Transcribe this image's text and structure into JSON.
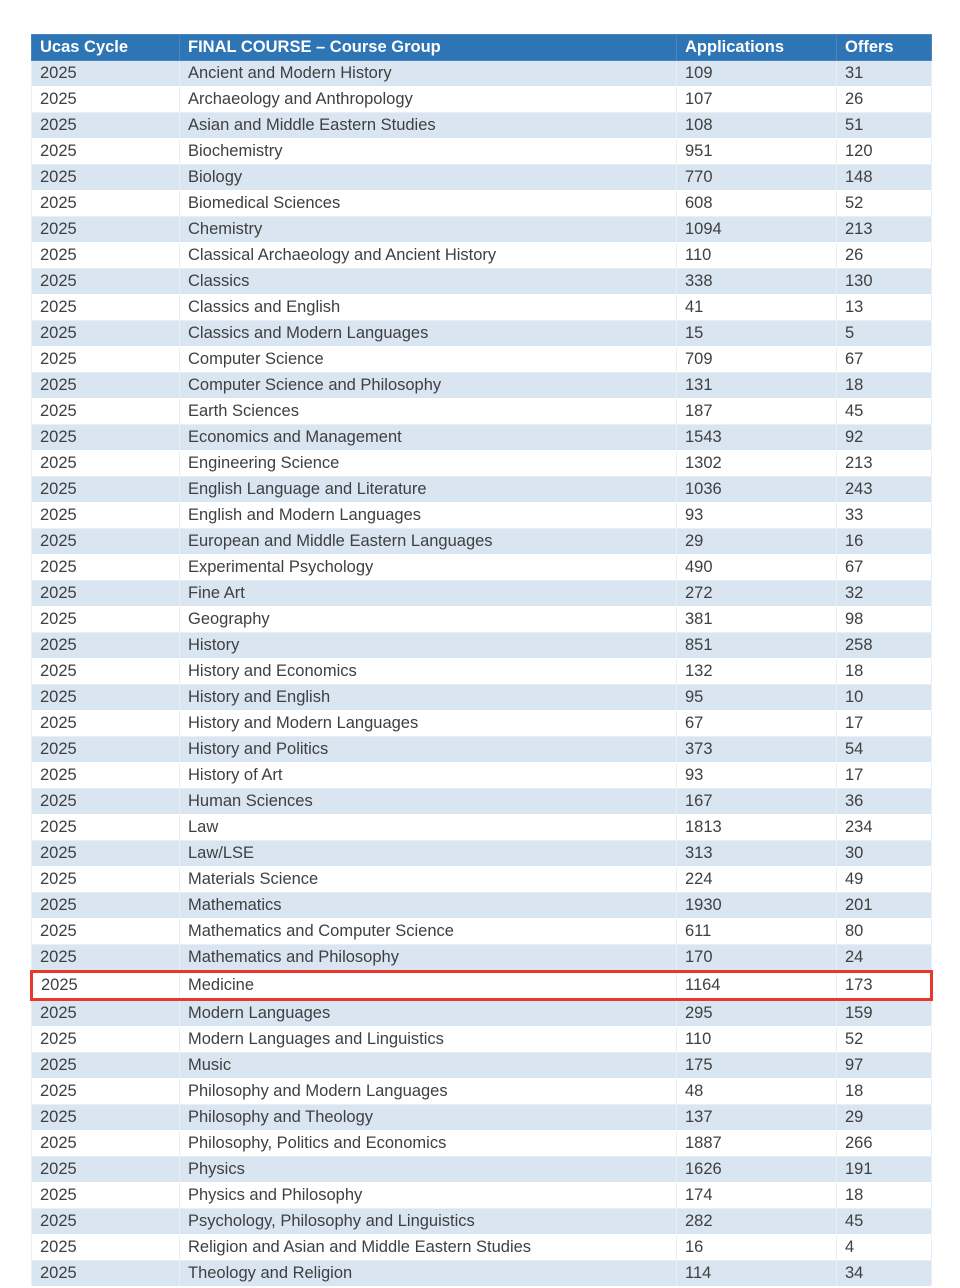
{
  "table": {
    "headers": [
      "Ucas Cycle",
      "FINAL COURSE – Course Group",
      "Applications",
      "Offers"
    ],
    "highlighted_course": "Medicine",
    "rows": [
      [
        "2025",
        "Ancient and Modern History",
        "109",
        "31"
      ],
      [
        "2025",
        "Archaeology and Anthropology",
        "107",
        "26"
      ],
      [
        "2025",
        "Asian and Middle Eastern Studies",
        "108",
        "51"
      ],
      [
        "2025",
        "Biochemistry",
        "951",
        "120"
      ],
      [
        "2025",
        "Biology",
        "770",
        "148"
      ],
      [
        "2025",
        "Biomedical Sciences",
        "608",
        "52"
      ],
      [
        "2025",
        "Chemistry",
        "1094",
        "213"
      ],
      [
        "2025",
        "Classical Archaeology and Ancient History",
        "110",
        "26"
      ],
      [
        "2025",
        "Classics",
        "338",
        "130"
      ],
      [
        "2025",
        "Classics and English",
        "41",
        "13"
      ],
      [
        "2025",
        "Classics and Modern Languages",
        "15",
        "5"
      ],
      [
        "2025",
        "Computer Science",
        "709",
        "67"
      ],
      [
        "2025",
        "Computer Science and Philosophy",
        "131",
        "18"
      ],
      [
        "2025",
        "Earth Sciences",
        "187",
        "45"
      ],
      [
        "2025",
        "Economics and Management",
        "1543",
        "92"
      ],
      [
        "2025",
        "Engineering Science",
        "1302",
        "213"
      ],
      [
        "2025",
        "English Language and Literature",
        "1036",
        "243"
      ],
      [
        "2025",
        "English and Modern Languages",
        "93",
        "33"
      ],
      [
        "2025",
        "European and Middle Eastern Languages",
        "29",
        "16"
      ],
      [
        "2025",
        "Experimental Psychology",
        "490",
        "67"
      ],
      [
        "2025",
        "Fine Art",
        "272",
        "32"
      ],
      [
        "2025",
        "Geography",
        "381",
        "98"
      ],
      [
        "2025",
        "History",
        "851",
        "258"
      ],
      [
        "2025",
        "History and Economics",
        "132",
        "18"
      ],
      [
        "2025",
        "History and English",
        "95",
        "10"
      ],
      [
        "2025",
        "History and Modern Languages",
        "67",
        "17"
      ],
      [
        "2025",
        "History and Politics",
        "373",
        "54"
      ],
      [
        "2025",
        "History of Art",
        "93",
        "17"
      ],
      [
        "2025",
        "Human Sciences",
        "167",
        "36"
      ],
      [
        "2025",
        "Law",
        "1813",
        "234"
      ],
      [
        "2025",
        "Law/LSE",
        "313",
        "30"
      ],
      [
        "2025",
        "Materials Science",
        "224",
        "49"
      ],
      [
        "2025",
        "Mathematics",
        "1930",
        "201"
      ],
      [
        "2025",
        "Mathematics and Computer Science",
        "611",
        "80"
      ],
      [
        "2025",
        "Mathematics and Philosophy",
        "170",
        "24"
      ],
      [
        "2025",
        "Medicine",
        "1164",
        "173"
      ],
      [
        "2025",
        "Modern Languages",
        "295",
        "159"
      ],
      [
        "2025",
        "Modern Languages and Linguistics",
        "110",
        "52"
      ],
      [
        "2025",
        "Music",
        "175",
        "97"
      ],
      [
        "2025",
        "Philosophy and Modern Languages",
        "48",
        "18"
      ],
      [
        "2025",
        "Philosophy and Theology",
        "137",
        "29"
      ],
      [
        "2025",
        "Philosophy, Politics and Economics",
        "1887",
        "266"
      ],
      [
        "2025",
        "Physics",
        "1626",
        "191"
      ],
      [
        "2025",
        "Physics and Philosophy",
        "174",
        "18"
      ],
      [
        "2025",
        "Psychology, Philosophy and Linguistics",
        "282",
        "45"
      ],
      [
        "2025",
        "Religion and Asian and Middle Eastern Studies",
        "16",
        "4"
      ],
      [
        "2025",
        "Theology and Religion",
        "114",
        "34"
      ]
    ]
  },
  "colors": {
    "header_bg": "#2e75b6",
    "row_alt_bg": "#d9e6f2",
    "highlight_border": "#e8382c"
  }
}
